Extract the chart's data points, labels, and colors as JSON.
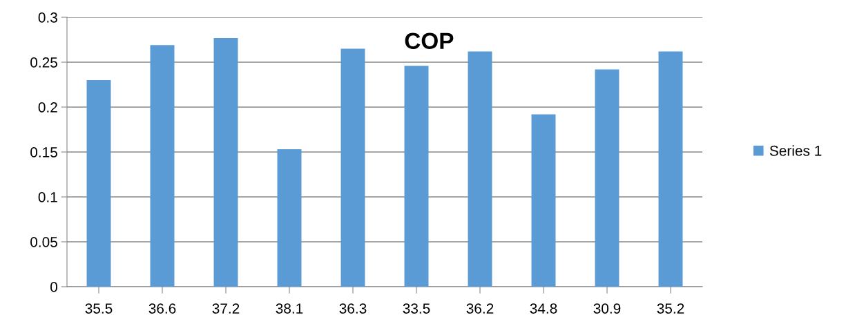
{
  "chart_data": {
    "type": "bar",
    "title": "COP",
    "categories": [
      "35.5",
      "36.6",
      "37.2",
      "38.1",
      "36.3",
      "33.5",
      "36.2",
      "34.8",
      "30.9",
      "35.2"
    ],
    "series": [
      {
        "name": "Series 1",
        "color": "#5b9bd5",
        "values": [
          0.23,
          0.269,
          0.277,
          0.153,
          0.265,
          0.246,
          0.262,
          0.192,
          0.242,
          0.262
        ]
      }
    ],
    "ylim": [
      0,
      0.3
    ],
    "yticks": [
      {
        "value": 0,
        "label": "0"
      },
      0.05,
      0.1,
      0.15,
      0.2,
      0.25,
      0.3
    ],
    "grid": "y",
    "legend": "right"
  }
}
